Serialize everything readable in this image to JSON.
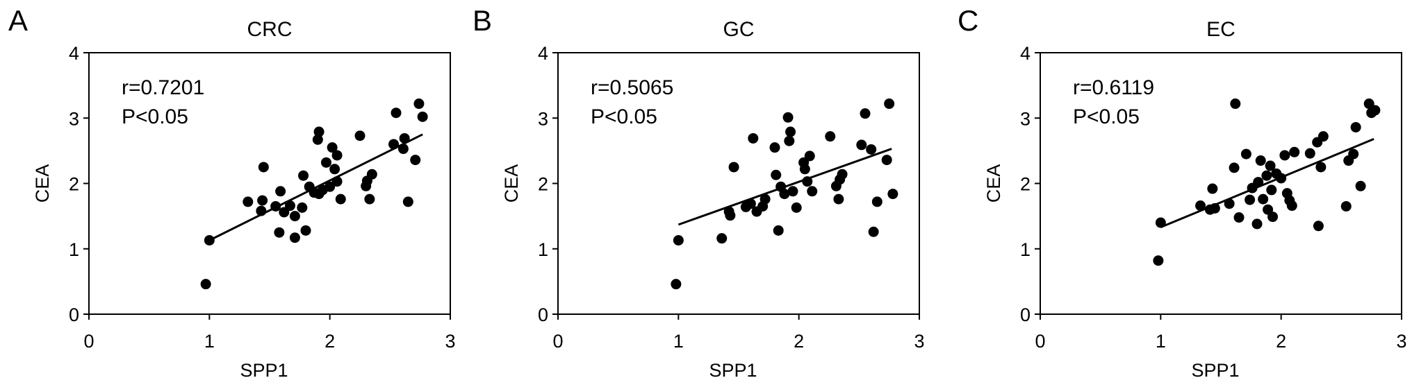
{
  "chart_data": [
    {
      "type": "scatter",
      "panel_label": "A",
      "title": "CRC",
      "xlabel": "SPP1",
      "ylabel": "CEA",
      "xlim": [
        0,
        3
      ],
      "ylim": [
        0,
        4
      ],
      "x_ticks": [
        "0",
        "1",
        "2",
        "3"
      ],
      "y_ticks": [
        "0",
        "1",
        "2",
        "3",
        "4"
      ],
      "annotation": [
        "r=0.7201",
        "P<0.05"
      ],
      "trend_line": {
        "x": [
          1.0,
          2.77
        ],
        "y": [
          1.13,
          2.75
        ]
      },
      "points": [
        {
          "x": 0.97,
          "y": 0.46
        },
        {
          "x": 1.0,
          "y": 1.13
        },
        {
          "x": 1.32,
          "y": 1.72
        },
        {
          "x": 1.43,
          "y": 1.58
        },
        {
          "x": 1.44,
          "y": 1.74
        },
        {
          "x": 1.45,
          "y": 2.25
        },
        {
          "x": 1.55,
          "y": 1.65
        },
        {
          "x": 1.58,
          "y": 1.25
        },
        {
          "x": 1.59,
          "y": 1.88
        },
        {
          "x": 1.62,
          "y": 1.56
        },
        {
          "x": 1.67,
          "y": 1.66
        },
        {
          "x": 1.71,
          "y": 1.17
        },
        {
          "x": 1.71,
          "y": 1.5
        },
        {
          "x": 1.77,
          "y": 1.63
        },
        {
          "x": 1.78,
          "y": 2.12
        },
        {
          "x": 1.8,
          "y": 1.28
        },
        {
          "x": 1.83,
          "y": 1.95
        },
        {
          "x": 1.87,
          "y": 1.86
        },
        {
          "x": 1.9,
          "y": 2.67
        },
        {
          "x": 1.91,
          "y": 2.79
        },
        {
          "x": 1.91,
          "y": 1.84
        },
        {
          "x": 1.94,
          "y": 1.9
        },
        {
          "x": 1.97,
          "y": 2.32
        },
        {
          "x": 2.0,
          "y": 1.95
        },
        {
          "x": 2.02,
          "y": 2.55
        },
        {
          "x": 2.04,
          "y": 2.22
        },
        {
          "x": 2.06,
          "y": 2.43
        },
        {
          "x": 2.06,
          "y": 2.03
        },
        {
          "x": 2.09,
          "y": 1.76
        },
        {
          "x": 2.25,
          "y": 2.73
        },
        {
          "x": 2.3,
          "y": 1.96
        },
        {
          "x": 2.31,
          "y": 2.04
        },
        {
          "x": 2.33,
          "y": 1.76
        },
        {
          "x": 2.35,
          "y": 2.14
        },
        {
          "x": 2.53,
          "y": 2.6
        },
        {
          "x": 2.55,
          "y": 3.08
        },
        {
          "x": 2.61,
          "y": 2.53
        },
        {
          "x": 2.62,
          "y": 2.69
        },
        {
          "x": 2.65,
          "y": 1.72
        },
        {
          "x": 2.71,
          "y": 2.36
        },
        {
          "x": 2.74,
          "y": 3.22
        },
        {
          "x": 2.77,
          "y": 3.02
        }
      ]
    },
    {
      "type": "scatter",
      "panel_label": "B",
      "title": "GC",
      "xlabel": "SPP1",
      "ylabel": "CEA",
      "xlim": [
        0,
        3
      ],
      "ylim": [
        0,
        4
      ],
      "x_ticks": [
        "0",
        "1",
        "2",
        "3"
      ],
      "y_ticks": [
        "0",
        "1",
        "2",
        "3",
        "4"
      ],
      "annotation": [
        "r=0.5065",
        "P<0.05"
      ],
      "trend_line": {
        "x": [
          1.0,
          2.77
        ],
        "y": [
          1.37,
          2.53
        ]
      },
      "points": [
        {
          "x": 0.98,
          "y": 0.46
        },
        {
          "x": 1.0,
          "y": 1.13
        },
        {
          "x": 1.36,
          "y": 1.16
        },
        {
          "x": 1.42,
          "y": 1.57
        },
        {
          "x": 1.43,
          "y": 1.51
        },
        {
          "x": 1.46,
          "y": 2.25
        },
        {
          "x": 1.56,
          "y": 1.64
        },
        {
          "x": 1.6,
          "y": 1.69
        },
        {
          "x": 1.62,
          "y": 2.69
        },
        {
          "x": 1.65,
          "y": 1.57
        },
        {
          "x": 1.7,
          "y": 1.65
        },
        {
          "x": 1.72,
          "y": 1.76
        },
        {
          "x": 1.8,
          "y": 2.55
        },
        {
          "x": 1.81,
          "y": 2.13
        },
        {
          "x": 1.83,
          "y": 1.28
        },
        {
          "x": 1.85,
          "y": 1.95
        },
        {
          "x": 1.88,
          "y": 1.84
        },
        {
          "x": 1.91,
          "y": 3.01
        },
        {
          "x": 1.92,
          "y": 2.65
        },
        {
          "x": 1.93,
          "y": 2.79
        },
        {
          "x": 1.95,
          "y": 1.88
        },
        {
          "x": 1.98,
          "y": 1.63
        },
        {
          "x": 2.04,
          "y": 2.32
        },
        {
          "x": 2.05,
          "y": 2.22
        },
        {
          "x": 2.07,
          "y": 2.03
        },
        {
          "x": 2.09,
          "y": 2.42
        },
        {
          "x": 2.11,
          "y": 1.88
        },
        {
          "x": 2.26,
          "y": 2.72
        },
        {
          "x": 2.31,
          "y": 1.96
        },
        {
          "x": 2.33,
          "y": 1.76
        },
        {
          "x": 2.34,
          "y": 2.06
        },
        {
          "x": 2.36,
          "y": 2.14
        },
        {
          "x": 2.52,
          "y": 2.59
        },
        {
          "x": 2.55,
          "y": 3.07
        },
        {
          "x": 2.6,
          "y": 2.52
        },
        {
          "x": 2.62,
          "y": 1.26
        },
        {
          "x": 2.65,
          "y": 1.72
        },
        {
          "x": 2.73,
          "y": 2.36
        },
        {
          "x": 2.75,
          "y": 3.22
        },
        {
          "x": 2.78,
          "y": 1.84
        }
      ]
    },
    {
      "type": "scatter",
      "panel_label": "C",
      "title": "EC",
      "xlabel": "SPP1",
      "ylabel": "CEA",
      "xlim": [
        0,
        3
      ],
      "ylim": [
        0,
        4
      ],
      "x_ticks": [
        "0",
        "1",
        "2",
        "3"
      ],
      "y_ticks": [
        "0",
        "1",
        "2",
        "3",
        "4"
      ],
      "annotation": [
        "r=0.6119",
        "P<0.05"
      ],
      "trend_line": {
        "x": [
          1.0,
          2.77
        ],
        "y": [
          1.33,
          2.68
        ]
      },
      "points": [
        {
          "x": 0.98,
          "y": 0.82
        },
        {
          "x": 1.0,
          "y": 1.4
        },
        {
          "x": 1.33,
          "y": 1.66
        },
        {
          "x": 1.41,
          "y": 1.6
        },
        {
          "x": 1.43,
          "y": 1.92
        },
        {
          "x": 1.45,
          "y": 1.62
        },
        {
          "x": 1.57,
          "y": 1.69
        },
        {
          "x": 1.61,
          "y": 2.24
        },
        {
          "x": 1.62,
          "y": 3.22
        },
        {
          "x": 1.65,
          "y": 1.48
        },
        {
          "x": 1.71,
          "y": 2.45
        },
        {
          "x": 1.74,
          "y": 1.75
        },
        {
          "x": 1.76,
          "y": 1.93
        },
        {
          "x": 1.8,
          "y": 1.38
        },
        {
          "x": 1.81,
          "y": 2.02
        },
        {
          "x": 1.83,
          "y": 2.35
        },
        {
          "x": 1.85,
          "y": 1.76
        },
        {
          "x": 1.88,
          "y": 2.12
        },
        {
          "x": 1.89,
          "y": 1.6
        },
        {
          "x": 1.91,
          "y": 2.27
        },
        {
          "x": 1.92,
          "y": 1.9
        },
        {
          "x": 1.93,
          "y": 1.49
        },
        {
          "x": 1.96,
          "y": 2.15
        },
        {
          "x": 2.0,
          "y": 2.08
        },
        {
          "x": 2.03,
          "y": 2.43
        },
        {
          "x": 2.05,
          "y": 1.85
        },
        {
          "x": 2.07,
          "y": 1.74
        },
        {
          "x": 2.09,
          "y": 1.66
        },
        {
          "x": 2.11,
          "y": 2.48
        },
        {
          "x": 2.24,
          "y": 2.46
        },
        {
          "x": 2.3,
          "y": 2.63
        },
        {
          "x": 2.31,
          "y": 1.35
        },
        {
          "x": 2.33,
          "y": 2.25
        },
        {
          "x": 2.35,
          "y": 2.72
        },
        {
          "x": 2.54,
          "y": 1.65
        },
        {
          "x": 2.56,
          "y": 2.35
        },
        {
          "x": 2.6,
          "y": 2.45
        },
        {
          "x": 2.62,
          "y": 2.86
        },
        {
          "x": 2.66,
          "y": 1.96
        },
        {
          "x": 2.73,
          "y": 3.22
        },
        {
          "x": 2.75,
          "y": 3.08
        },
        {
          "x": 2.78,
          "y": 3.12
        }
      ]
    }
  ]
}
